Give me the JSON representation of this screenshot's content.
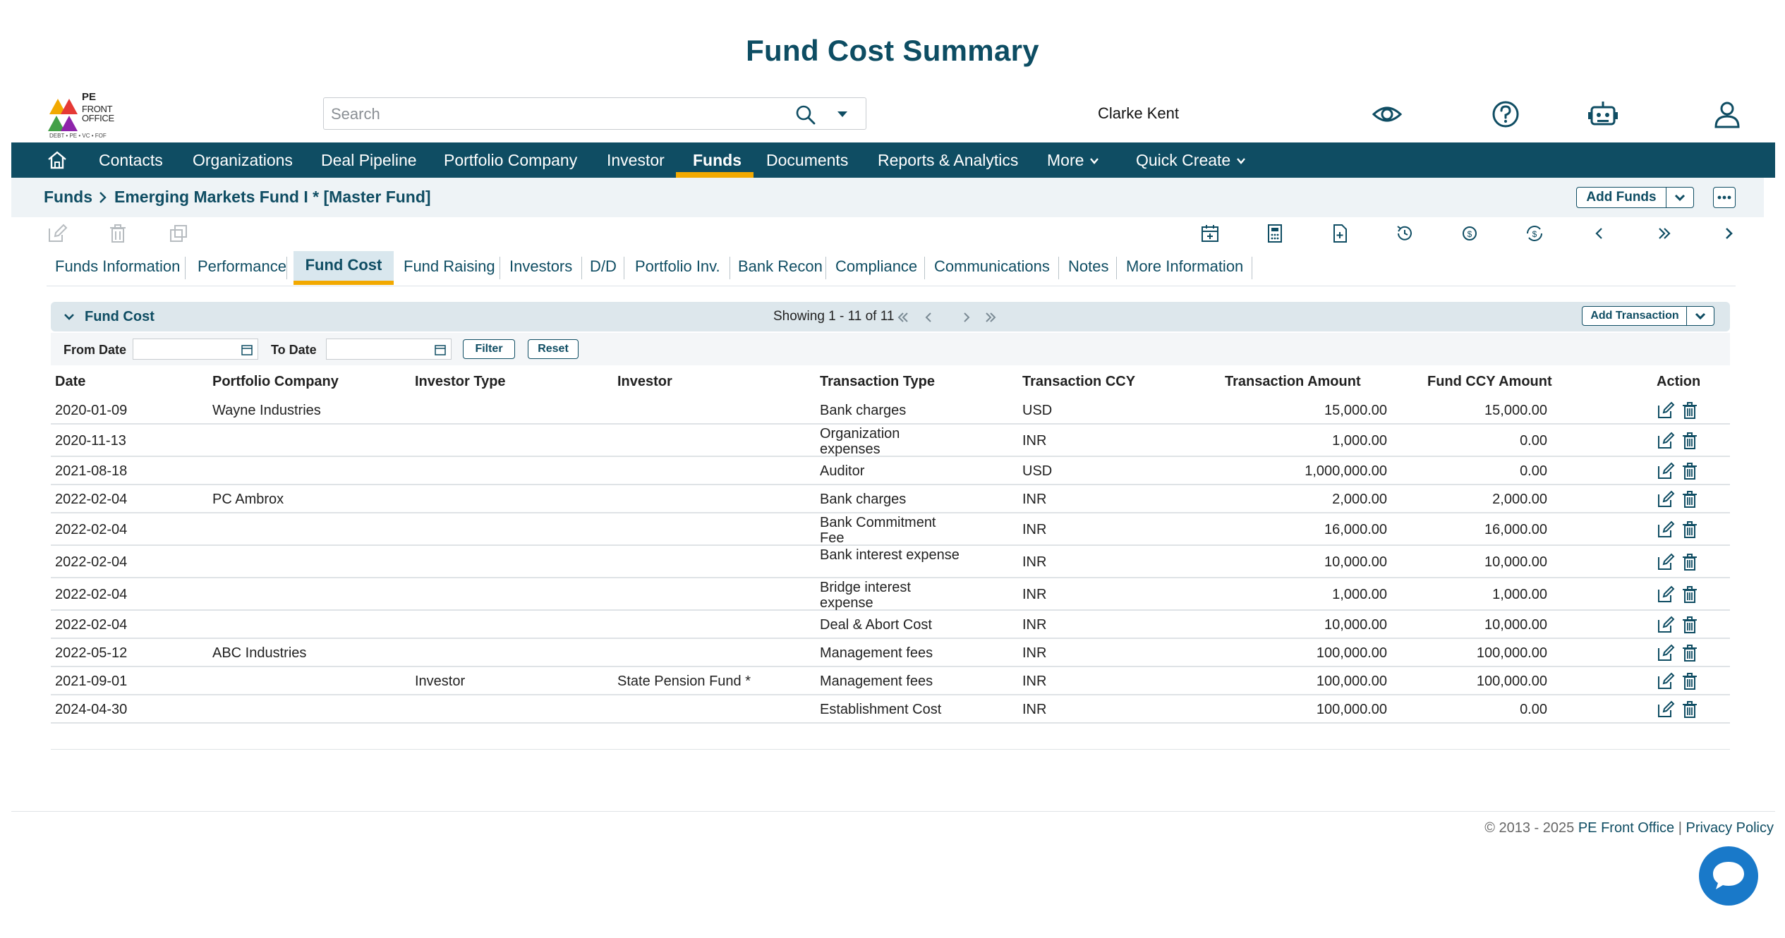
{
  "page_title": "Fund Cost Summary",
  "logo": {
    "line1": "PE",
    "line2": "FRONT",
    "line3": "OFFICE",
    "tagline": "DEBT • PE • VC • FOF"
  },
  "search": {
    "placeholder": "Search",
    "value": ""
  },
  "user": {
    "name": "Clarke Kent"
  },
  "top_icons": [
    "eye-icon",
    "help-icon",
    "robot-icon",
    "user-icon"
  ],
  "nav": {
    "items": [
      "Contacts",
      "Organizations",
      "Deal Pipeline",
      "Portfolio Company",
      "Investor",
      "Funds",
      "Documents",
      "Reports & Analytics",
      "More",
      "Quick Create"
    ],
    "active": "Funds"
  },
  "breadcrumb": {
    "root": "Funds",
    "current": "Emerging Markets Fund I * [Master Fund]"
  },
  "header_actions": {
    "add_funds": "Add Funds"
  },
  "tabs": [
    "Funds Information",
    "Performance",
    "Fund Cost",
    "Fund Raising",
    "Investors",
    "D/D",
    "Portfolio Inv.",
    "Bank Recon",
    "Compliance",
    "Communications",
    "Notes",
    "More Information"
  ],
  "active_tab": "Fund Cost",
  "section": {
    "title": "Fund Cost",
    "showing": "Showing 1 - 11 of 11",
    "add_transaction": "Add Transaction"
  },
  "filter": {
    "from_label": "From Date",
    "to_label": "To Date",
    "from_value": "",
    "to_value": "",
    "filter_btn": "Filter",
    "reset_btn": "Reset"
  },
  "table": {
    "columns": [
      "Date",
      "Portfolio Company",
      "Investor Type",
      "Investor",
      "Transaction Type",
      "Transaction CCY",
      "Transaction Amount",
      "Fund CCY Amount",
      "Action"
    ],
    "rows": [
      {
        "date": "2020-01-09",
        "company": "Wayne Industries",
        "inv_type": "",
        "investor": "",
        "type": "Bank charges",
        "ccy": "USD",
        "amount": "15,000.00",
        "fund_amount": "15,000.00"
      },
      {
        "date": "2020-11-13",
        "company": "",
        "inv_type": "",
        "investor": "",
        "type": "Organization expenses",
        "ccy": "INR",
        "amount": "1,000.00",
        "fund_amount": "0.00"
      },
      {
        "date": "2021-08-18",
        "company": "",
        "inv_type": "",
        "investor": "",
        "type": "Auditor",
        "ccy": "USD",
        "amount": "1,000,000.00",
        "fund_amount": "0.00"
      },
      {
        "date": "2022-02-04",
        "company": "PC Ambrox",
        "inv_type": "",
        "investor": "",
        "type": "Bank charges",
        "ccy": "INR",
        "amount": "2,000.00",
        "fund_amount": "2,000.00"
      },
      {
        "date": "2022-02-04",
        "company": "",
        "inv_type": "",
        "investor": "",
        "type": "Bank Commitment Fee",
        "ccy": "INR",
        "amount": "16,000.00",
        "fund_amount": "16,000.00"
      },
      {
        "date": "2022-02-04",
        "company": "",
        "inv_type": "",
        "investor": "",
        "type": "Bank interest expense",
        "ccy": "INR",
        "amount": "10,000.00",
        "fund_amount": "10,000.00"
      },
      {
        "date": "2022-02-04",
        "company": "",
        "inv_type": "",
        "investor": "",
        "type": "Bridge interest expense",
        "ccy": "INR",
        "amount": "1,000.00",
        "fund_amount": "1,000.00"
      },
      {
        "date": "2022-02-04",
        "company": "",
        "inv_type": "",
        "investor": "",
        "type": "Deal & Abort Cost",
        "ccy": "INR",
        "amount": "10,000.00",
        "fund_amount": "10,000.00"
      },
      {
        "date": "2022-05-12",
        "company": "ABC Industries",
        "inv_type": "",
        "investor": "",
        "type": "Management fees",
        "ccy": "INR",
        "amount": "100,000.00",
        "fund_amount": "100,000.00"
      },
      {
        "date": "2021-09-01",
        "company": "",
        "inv_type": "Investor",
        "investor": "State Pension Fund *",
        "type": "Management fees",
        "ccy": "INR",
        "amount": "100,000.00",
        "fund_amount": "100,000.00"
      },
      {
        "date": "2024-04-30",
        "company": "",
        "inv_type": "",
        "investor": "",
        "type": "Establishment Cost",
        "ccy": "INR",
        "amount": "100,000.00",
        "fund_amount": "0.00"
      }
    ]
  },
  "footer": {
    "copyright": "© 2013 - 2025",
    "brand": "PE Front Office",
    "sep": "|",
    "privacy": "Privacy Policy"
  },
  "colors": {
    "primary": "#0f4d63",
    "accent": "#f2a900",
    "chat": "#1979c9"
  }
}
